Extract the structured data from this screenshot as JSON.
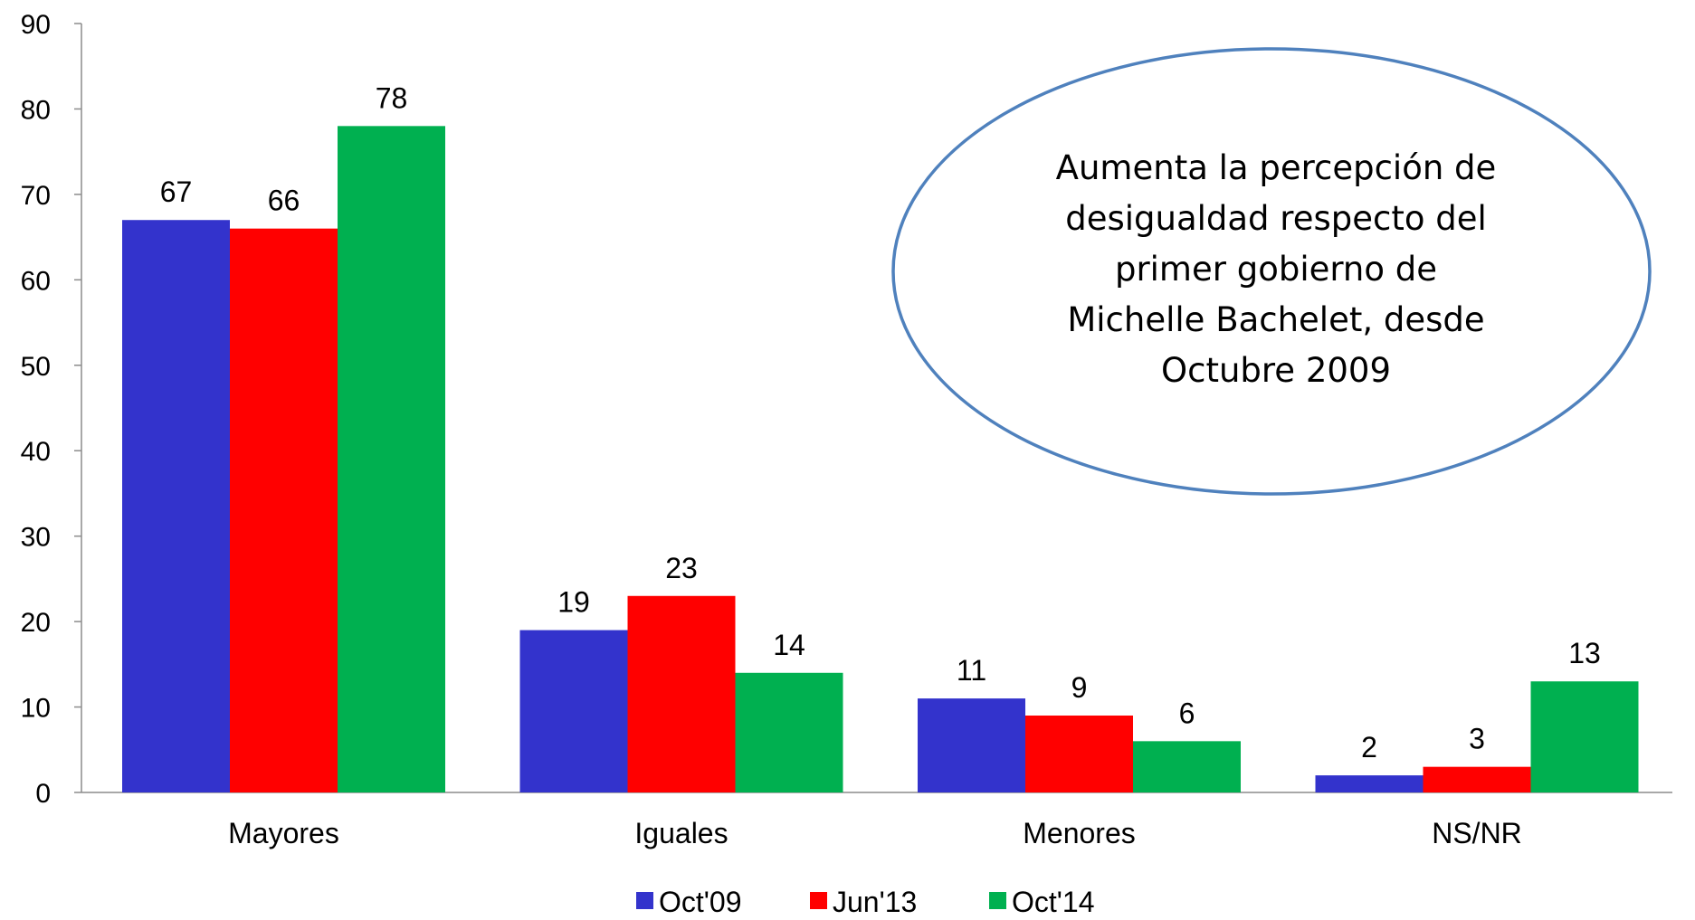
{
  "chart_data": {
    "type": "bar",
    "categories": [
      "Mayores",
      "Iguales",
      "Menores",
      "NS/NR"
    ],
    "series": [
      {
        "name": "Oct'09",
        "color": "#3333CC",
        "values": [
          67,
          19,
          11,
          2
        ]
      },
      {
        "name": "Jun'13",
        "color": "#FF0000",
        "values": [
          66,
          23,
          9,
          3
        ]
      },
      {
        "name": "Oct'14",
        "color": "#00B050",
        "values": [
          78,
          14,
          6,
          13
        ]
      }
    ],
    "ylim": [
      0,
      90
    ],
    "yticks": [
      "0",
      "10",
      "20",
      "30",
      "40",
      "50",
      "60",
      "70",
      "80",
      "90"
    ],
    "grid": false,
    "legend_position": "bottom",
    "annotation": {
      "lines": [
        "Aumenta la percepción de",
        "desigualdad respecto del",
        "primer gobierno de",
        "Michelle Bachelet, desde",
        "Octubre  2009"
      ],
      "border_color": "#4F81BD"
    }
  }
}
